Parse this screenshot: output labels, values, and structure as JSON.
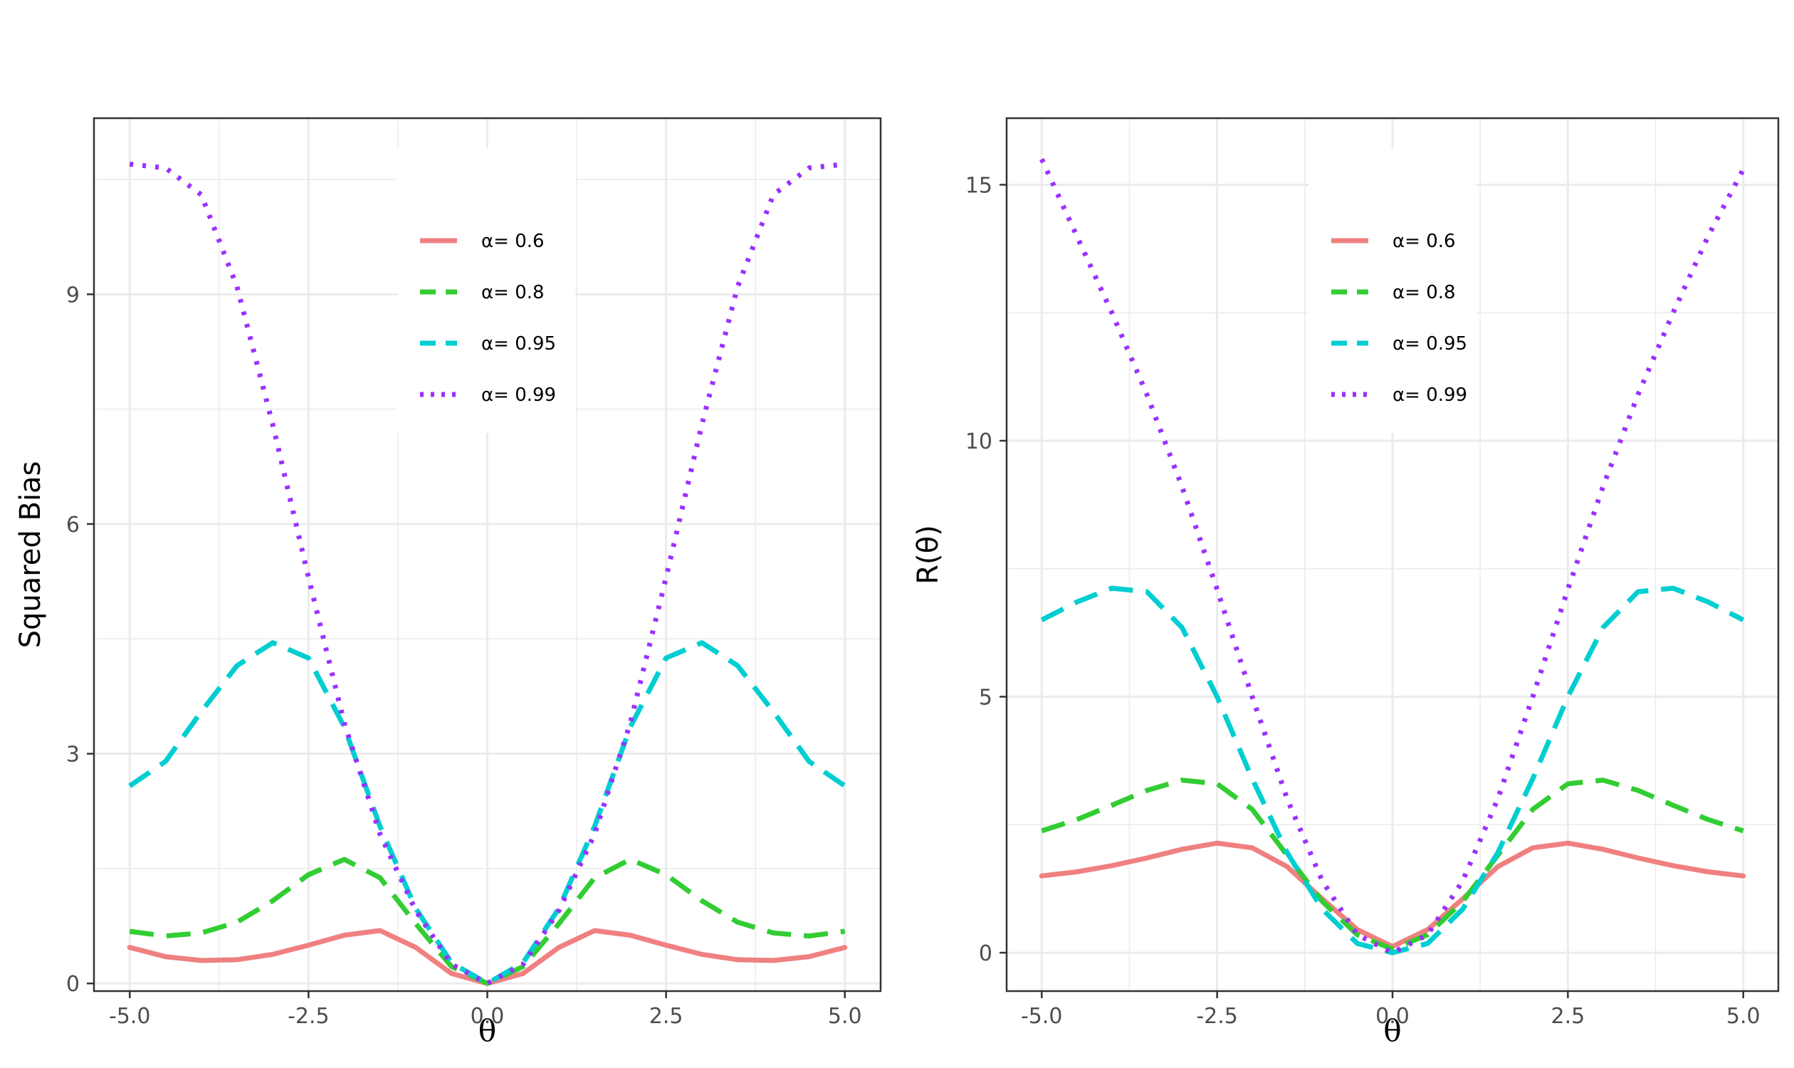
{
  "chart_data": [
    {
      "type": "line",
      "panel": "left",
      "title": "",
      "xlabel": "θ",
      "ylabel": "Squared Bias",
      "xlim": [
        -5.5,
        5.5
      ],
      "ylim": [
        -0.1,
        11.3
      ],
      "xticks": [
        -5.0,
        -2.5,
        0.0,
        2.5,
        5.0
      ],
      "xtick_labels": [
        "-5.0",
        "-2.5",
        "0.0",
        "2.5",
        "5.0"
      ],
      "yticks": [
        0,
        3,
        6,
        9
      ],
      "ytick_labels": [
        "0",
        "3",
        "6",
        "9"
      ],
      "grid": true,
      "legend_position": "top-center",
      "series": [
        {
          "name": "α= 0.6",
          "legend_label": "α= 0.6",
          "color": "#F08080",
          "style": "solid",
          "x": [
            -5,
            -4.5,
            -4,
            -3.5,
            -3,
            -2.5,
            -2,
            -1.5,
            -1,
            -0.5,
            0,
            0.5,
            1,
            1.5,
            2,
            2.5,
            3,
            3.5,
            4,
            4.5,
            5
          ],
          "y": [
            0.47,
            0.35,
            0.3,
            0.31,
            0.38,
            0.5,
            0.63,
            0.69,
            0.47,
            0.13,
            0.0,
            0.13,
            0.47,
            0.69,
            0.63,
            0.5,
            0.38,
            0.31,
            0.3,
            0.35,
            0.47
          ]
        },
        {
          "name": "α= 0.8",
          "legend_label": "α= 0.8",
          "color": "#32CD32",
          "style": "dashed",
          "x": [
            -5,
            -4.5,
            -4,
            -3.5,
            -3,
            -2.5,
            -2,
            -1.5,
            -1,
            -0.5,
            0,
            0.5,
            1,
            1.5,
            2,
            2.5,
            3,
            3.5,
            4,
            4.5,
            5
          ],
          "y": [
            0.68,
            0.62,
            0.66,
            0.8,
            1.08,
            1.42,
            1.62,
            1.38,
            0.78,
            0.22,
            0.0,
            0.22,
            0.78,
            1.38,
            1.62,
            1.42,
            1.08,
            0.8,
            0.66,
            0.62,
            0.68
          ]
        },
        {
          "name": "α= 0.95",
          "legend_label": "α= 0.95",
          "color": "#00CED1",
          "style": "dashed",
          "x": [
            -5,
            -4.5,
            -4,
            -3.5,
            -3,
            -2.5,
            -2,
            -1.5,
            -1,
            -0.5,
            0,
            0.5,
            1,
            1.5,
            2,
            2.5,
            3,
            3.5,
            4,
            4.5,
            5
          ],
          "y": [
            2.58,
            2.9,
            3.55,
            4.15,
            4.45,
            4.25,
            3.35,
            2.05,
            0.98,
            0.27,
            0.0,
            0.27,
            0.98,
            2.05,
            3.35,
            4.25,
            4.45,
            4.15,
            3.55,
            2.9,
            2.58
          ]
        },
        {
          "name": "α= 0.99",
          "legend_label": "α= 0.99",
          "color": "#9B30FF",
          "style": "dotted",
          "x": [
            -5,
            -4.5,
            -4,
            -3.5,
            -3,
            -2.5,
            -2,
            -1.5,
            -1,
            -0.5,
            0,
            0.5,
            1,
            1.5,
            2,
            2.5,
            3,
            3.5,
            4,
            4.5,
            5
          ],
          "y": [
            10.7,
            10.65,
            10.3,
            9.1,
            7.3,
            5.3,
            3.4,
            1.95,
            0.95,
            0.25,
            0.0,
            0.25,
            0.95,
            1.95,
            3.4,
            5.3,
            7.3,
            9.1,
            10.3,
            10.65,
            10.7
          ]
        }
      ]
    },
    {
      "type": "line",
      "panel": "right",
      "title": "",
      "xlabel": "θ",
      "ylabel": "R(θ)",
      "xlim": [
        -5.5,
        5.5
      ],
      "ylim": [
        -0.75,
        16.3
      ],
      "xticks": [
        -5.0,
        -2.5,
        0.0,
        2.5,
        5.0
      ],
      "xtick_labels": [
        "-5.0",
        "-2.5",
        "0.0",
        "2.5",
        "5.0"
      ],
      "yticks": [
        0,
        5,
        10,
        15
      ],
      "ytick_labels": [
        "0",
        "5",
        "10",
        "15"
      ],
      "grid": true,
      "legend_position": "top-center",
      "series": [
        {
          "name": "α= 0.6",
          "legend_label": "α= 0.6",
          "color": "#F08080",
          "style": "solid",
          "x": [
            -5,
            -4.5,
            -4,
            -3.5,
            -3,
            -2.5,
            -2,
            -1.5,
            -1,
            -0.5,
            0,
            0.5,
            1,
            1.5,
            2,
            2.5,
            3,
            3.5,
            4,
            4.5,
            5
          ],
          "y": [
            1.5,
            1.58,
            1.7,
            1.85,
            2.02,
            2.14,
            2.05,
            1.68,
            1.05,
            0.45,
            0.12,
            0.45,
            1.05,
            1.68,
            2.05,
            2.14,
            2.02,
            1.85,
            1.7,
            1.58,
            1.5
          ]
        },
        {
          "name": "α= 0.8",
          "legend_label": "α= 0.8",
          "color": "#32CD32",
          "style": "dashed",
          "x": [
            -5,
            -4.5,
            -4,
            -3.5,
            -3,
            -2.5,
            -2,
            -1.5,
            -1,
            -0.5,
            0,
            0.5,
            1,
            1.5,
            2,
            2.5,
            3,
            3.5,
            4,
            4.5,
            5
          ],
          "y": [
            2.38,
            2.6,
            2.88,
            3.17,
            3.37,
            3.3,
            2.8,
            1.9,
            1.0,
            0.35,
            0.07,
            0.35,
            1.0,
            1.9,
            2.8,
            3.3,
            3.37,
            3.17,
            2.88,
            2.6,
            2.38
          ]
        },
        {
          "name": "α= 0.95",
          "legend_label": "α= 0.95",
          "color": "#00CED1",
          "style": "dashed",
          "x": [
            -5,
            -4.5,
            -4,
            -3.5,
            -3,
            -2.5,
            -2,
            -1.5,
            -1,
            -0.5,
            0,
            0.5,
            1,
            1.5,
            2,
            2.5,
            3,
            3.5,
            4,
            4.5,
            5
          ],
          "y": [
            6.5,
            6.85,
            7.12,
            7.05,
            6.35,
            5.0,
            3.4,
            1.95,
            0.85,
            0.18,
            0.0,
            0.18,
            0.85,
            1.95,
            3.4,
            5.0,
            6.35,
            7.05,
            7.12,
            6.85,
            6.5
          ]
        },
        {
          "name": "α= 0.99",
          "legend_label": "α= 0.99",
          "color": "#9B30FF",
          "style": "dotted",
          "x": [
            -5,
            -4.5,
            -4,
            -3.5,
            -3,
            -2.5,
            -2,
            -1.5,
            -1,
            -0.5,
            0,
            0.5,
            1,
            1.5,
            2,
            2.5,
            3,
            3.5,
            4,
            4.5,
            5
          ],
          "y": [
            15.5,
            14.0,
            12.5,
            10.9,
            9.1,
            7.1,
            5.0,
            3.0,
            1.4,
            0.35,
            0.0,
            0.35,
            1.4,
            3.0,
            5.0,
            7.1,
            9.1,
            10.9,
            12.5,
            14.0,
            15.3
          ]
        }
      ]
    }
  ]
}
